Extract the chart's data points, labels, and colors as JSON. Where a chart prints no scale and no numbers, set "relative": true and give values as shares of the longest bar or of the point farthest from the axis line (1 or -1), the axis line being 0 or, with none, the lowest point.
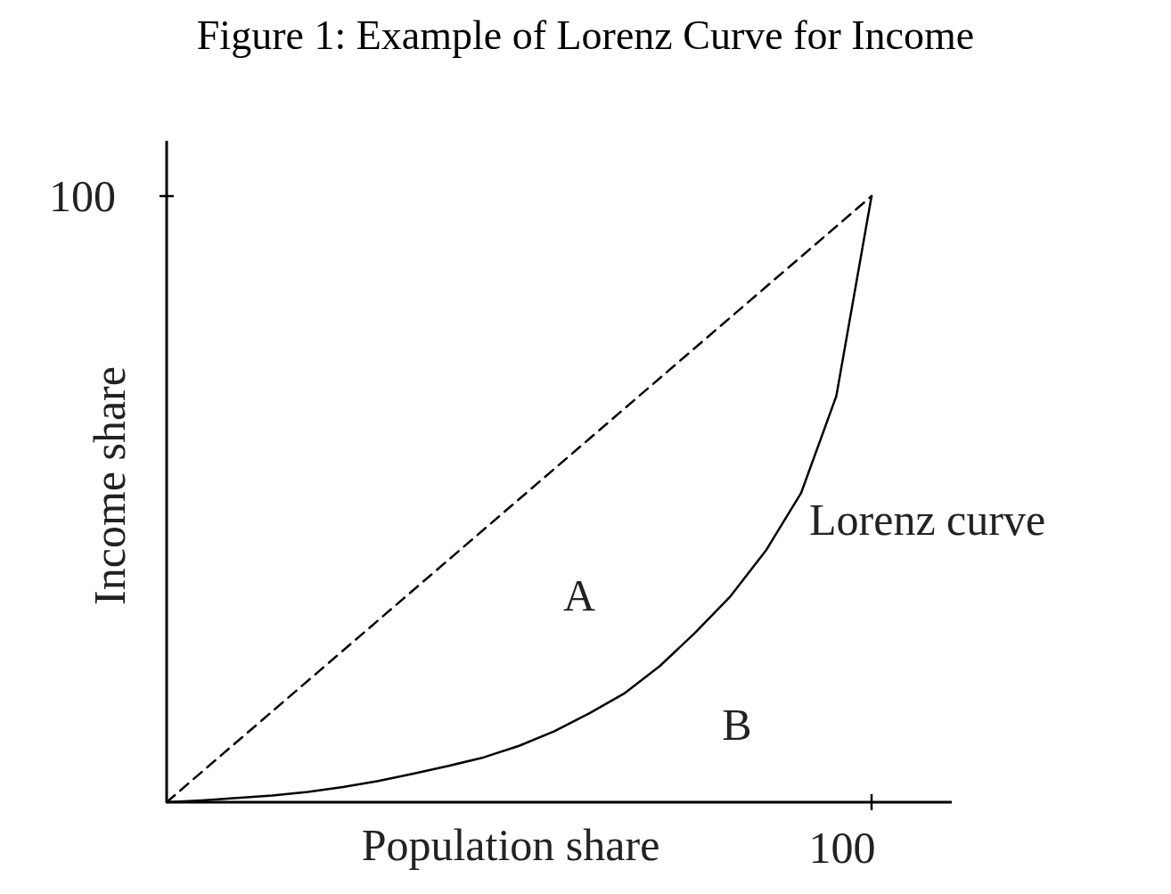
{
  "chart_data": {
    "type": "line",
    "title": "Figure 1: Example of Lorenz Curve for Income",
    "xlabel": "Population share",
    "ylabel": "Income share",
    "relative": true,
    "marker": "none",
    "categories": [
      null,
      null,
      null,
      null,
      null,
      null,
      null,
      null,
      null,
      null,
      null,
      null,
      null,
      null,
      null,
      null,
      null,
      null,
      null,
      null,
      null
    ],
    "series": [
      {
        "color": "#000000",
        "line_style": "dashed",
        "values": [
          0,
          0.05,
          0.1,
          0.15,
          0.2,
          0.25,
          0.3,
          0.35,
          0.4,
          0.45,
          0.5,
          0.55,
          0.6,
          0.65,
          0.7,
          0.75,
          0.8,
          0.85,
          0.9,
          0.95,
          1
        ]
      },
      {
        "color": "#000000",
        "line_style": "solid",
        "values": [
          0,
          0.003,
          0.007,
          0.011,
          0.017,
          0.025,
          0.035,
          0.047,
          0.06,
          0.074,
          0.093,
          0.117,
          0.147,
          0.18,
          0.225,
          0.28,
          0.34,
          0.415,
          0.51,
          0.67,
          1
        ]
      }
    ],
    "annotations": [
      "100",
      "100",
      "Lorenz curve",
      "A",
      "B"
    ]
  }
}
